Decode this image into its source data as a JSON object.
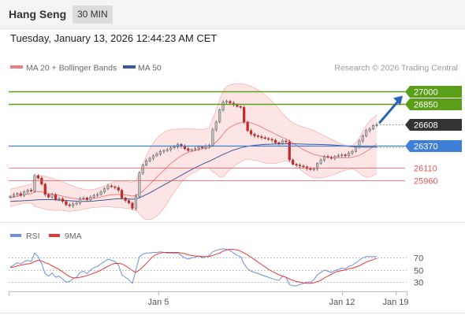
{
  "header": {
    "symbol": "Hang Seng",
    "timeframe": "30 MIN",
    "datetime": "Tuesday, January 13, 2026 12:44:23 AM CET"
  },
  "legend": {
    "ma20_label": "MA 20 + Bollinger Bands",
    "ma50_label": "MA 50",
    "copyright": "Research © 2026 Trading Central"
  },
  "colors": {
    "up_candle": "#bfbfbf",
    "down_candle": "#c62828",
    "ma20": "#f08080",
    "ma50": "#3a5a98",
    "bollinger_fill": "#fde2e2",
    "resistance": "#5a9e1a",
    "pivot": "#3f7fd6",
    "support": "#e35b5b",
    "last_price": "#333333",
    "arrow": "#2a62b8",
    "rsi": "#6f8fd8",
    "rsi_ma": "#e53935"
  },
  "chart_data": [
    {
      "type": "candlestick",
      "title": "",
      "x_ticks": [
        "Jan 5",
        "Jan 12",
        "Jan 19"
      ],
      "ylim": [
        25480,
        27160
      ],
      "levels": [
        {
          "value": 27000,
          "label": "27000",
          "kind": "resistance"
        },
        {
          "value": 26850,
          "label": "26850",
          "kind": "resistance"
        },
        {
          "value": 26608,
          "label": "26608",
          "kind": "last"
        },
        {
          "value": 26370,
          "label": "26370",
          "kind": "pivot"
        },
        {
          "value": 26110,
          "label": "26110",
          "kind": "support"
        },
        {
          "value": 25960,
          "label": "25960",
          "kind": "support"
        }
      ],
      "close": [
        25780,
        25800,
        25810,
        25790,
        25830,
        25850,
        25840,
        26020,
        25990,
        25920,
        25800,
        25770,
        25800,
        25740,
        25750,
        25720,
        25680,
        25670,
        25690,
        25700,
        25750,
        25760,
        25740,
        25770,
        25790,
        25800,
        25830,
        25870,
        25900,
        25890,
        25880,
        25850,
        25760,
        25730,
        25700,
        25640,
        25780,
        26050,
        26140,
        26190,
        26220,
        26250,
        26270,
        26300,
        26310,
        26320,
        26340,
        26350,
        26380,
        26360,
        26330,
        26310,
        26320,
        26330,
        26350,
        26340,
        26360,
        26370,
        26550,
        26640,
        26780,
        26870,
        26880,
        26860,
        26840,
        26820,
        26810,
        26640,
        26540,
        26500,
        26480,
        26470,
        26460,
        26450,
        26440,
        26430,
        26400,
        26390,
        26420,
        26410,
        26200,
        26150,
        26140,
        26130,
        26120,
        26100,
        26090,
        26100,
        26160,
        26200,
        26240,
        26230,
        26220,
        26240,
        26250,
        26260,
        26250,
        26280,
        26300,
        26350,
        26420,
        26480,
        26540,
        26560,
        26600,
        26608
      ],
      "ma20": [
        25760,
        25770,
        25780,
        25790,
        25800,
        25805,
        25810,
        25830,
        25835,
        25830,
        25820,
        25810,
        25805,
        25795,
        25790,
        25780,
        25770,
        25760,
        25755,
        25750,
        25745,
        25745,
        25745,
        25750,
        25755,
        25760,
        25770,
        25780,
        25790,
        25795,
        25800,
        25800,
        25800,
        25795,
        25790,
        25780,
        25790,
        25810,
        25840,
        25880,
        25920,
        25960,
        26000,
        26040,
        26080,
        26120,
        26160,
        26190,
        26220,
        26250,
        26270,
        26290,
        26300,
        26310,
        26320,
        26330,
        26335,
        26340,
        26370,
        26410,
        26450,
        26500,
        26550,
        26580,
        26600,
        26620,
        26630,
        26640,
        26640,
        26630,
        26615,
        26600,
        26580,
        26560,
        26540,
        26520,
        26500,
        26480,
        26460,
        26445,
        26420,
        26395,
        26370,
        26345,
        26320,
        26300,
        26280,
        26265,
        26255,
        26245,
        26240,
        26235,
        26230,
        26228,
        26226,
        26226,
        26226,
        26228,
        26232,
        26240,
        26255,
        26275,
        26300,
        26325,
        26355,
        26385
      ],
      "bb_upper": [
        25860,
        25870,
        25880,
        25890,
        25900,
        25910,
        25920,
        26000,
        26020,
        26020,
        26010,
        26000,
        25990,
        25975,
        25960,
        25945,
        25930,
        25915,
        25900,
        25885,
        25870,
        25860,
        25855,
        25855,
        25860,
        25870,
        25885,
        25900,
        25920,
        25935,
        25950,
        25955,
        25955,
        25950,
        25945,
        25940,
        25960,
        26050,
        26150,
        26250,
        26330,
        26400,
        26450,
        26490,
        26520,
        26540,
        26550,
        26555,
        26558,
        26560,
        26560,
        26560,
        26560,
        26558,
        26555,
        26555,
        26560,
        26570,
        26680,
        26780,
        26900,
        27000,
        27050,
        27070,
        27080,
        27085,
        27085,
        27080,
        27070,
        27055,
        27035,
        27010,
        26985,
        26955,
        26920,
        26880,
        26840,
        26790,
        26740,
        26700,
        26660,
        26630,
        26610,
        26595,
        26580,
        26570,
        26555,
        26540,
        26520,
        26500,
        26480,
        26460,
        26440,
        26420,
        26400,
        26385,
        26370,
        26365,
        26370,
        26400,
        26460,
        26530,
        26600,
        26650,
        26690,
        26720
      ],
      "bb_lower": [
        25660,
        25670,
        25680,
        25690,
        25700,
        25700,
        25700,
        25660,
        25650,
        25640,
        25630,
        25620,
        25620,
        25615,
        25620,
        25615,
        25610,
        25605,
        25610,
        25615,
        25620,
        25630,
        25635,
        25645,
        25650,
        25650,
        25655,
        25660,
        25660,
        25655,
        25650,
        25645,
        25645,
        25640,
        25635,
        25620,
        25620,
        25570,
        25530,
        25510,
        25510,
        25520,
        25550,
        25590,
        25640,
        25700,
        25770,
        25825,
        25882,
        25940,
        25980,
        26020,
        26040,
        26062,
        26085,
        26105,
        26110,
        26110,
        26060,
        26040,
        26000,
        26000,
        26050,
        26090,
        26120,
        26155,
        26175,
        26200,
        26210,
        26205,
        26195,
        26190,
        26175,
        26165,
        26160,
        26160,
        26160,
        26170,
        26180,
        26190,
        26180,
        26160,
        26130,
        26095,
        26060,
        26030,
        26005,
        25990,
        25990,
        25990,
        26000,
        26010,
        26020,
        26036,
        26052,
        26067,
        26082,
        26091,
        26094,
        26080,
        26050,
        26020,
        26000,
        26000,
        26020,
        26050
      ],
      "ma50": [
        25720,
        25722,
        25724,
        25726,
        25728,
        25730,
        25732,
        25736,
        25739,
        25740,
        25740,
        25740,
        25740,
        25738,
        25736,
        25733,
        25730,
        25727,
        25725,
        25722,
        25720,
        25720,
        25720,
        25722,
        25725,
        25728,
        25732,
        25736,
        25740,
        25744,
        25748,
        25750,
        25750,
        25750,
        25748,
        25745,
        25748,
        25762,
        25780,
        25800,
        25820,
        25842,
        25865,
        25888,
        25910,
        25932,
        25955,
        25978,
        26000,
        26022,
        26045,
        26068,
        26090,
        26110,
        26130,
        26150,
        26168,
        26185,
        26205,
        26225,
        26245,
        26265,
        26282,
        26300,
        26315,
        26328,
        26340,
        26350,
        26358,
        26365,
        26370,
        26374,
        26378,
        26380,
        26382,
        26384,
        26385,
        26386,
        26387,
        26388,
        26388,
        26387,
        26386,
        26385,
        26384,
        26383,
        26382,
        26381,
        26380,
        26379,
        26378,
        26377,
        26375,
        26372,
        26369,
        26366,
        26362,
        26358,
        26355,
        26352,
        26350,
        26349,
        26348,
        26348,
        26348,
        26349
      ]
    },
    {
      "type": "line",
      "title": "",
      "series": [
        {
          "name": "RSI",
          "values": [
            55,
            58,
            62,
            60,
            64,
            66,
            64,
            78,
            72,
            60,
            44,
            40,
            45,
            38,
            40,
            35,
            30,
            31,
            36,
            38,
            46,
            48,
            44,
            50,
            54,
            56,
            60,
            64,
            68,
            66,
            64,
            58,
            42,
            38,
            34,
            28,
            50,
            72,
            76,
            78,
            78,
            79,
            79,
            80,
            79,
            78,
            78,
            77,
            78,
            74,
            70,
            68,
            70,
            71,
            73,
            70,
            72,
            73,
            80,
            82,
            84,
            85,
            84,
            82,
            78,
            74,
            72,
            60,
            52,
            48,
            46,
            44,
            42,
            40,
            38,
            36,
            34,
            33,
            40,
            38,
            26,
            24,
            24,
            26,
            28,
            30,
            30,
            34,
            42,
            46,
            50,
            48,
            46,
            49,
            51,
            53,
            52,
            56,
            58,
            62,
            66,
            70,
            72,
            72,
            72,
            72
          ]
        },
        {
          "name": "9MA",
          "values": [
            54,
            55,
            57,
            58,
            59,
            60,
            61,
            64,
            66,
            65,
            62,
            60,
            57,
            54,
            51,
            47,
            43,
            39,
            37,
            37,
            38,
            39,
            41,
            43,
            45,
            47,
            50,
            53,
            56,
            59,
            61,
            61,
            60,
            57,
            53,
            49,
            46,
            50,
            55,
            61,
            67,
            73,
            76,
            78,
            79,
            79,
            79,
            79,
            79,
            78,
            77,
            75,
            74,
            73,
            73,
            72,
            72,
            72,
            74,
            76,
            78,
            81,
            83,
            84,
            84,
            83,
            81,
            78,
            75,
            71,
            67,
            63,
            59,
            55,
            51,
            48,
            45,
            42,
            40,
            38,
            35,
            33,
            31,
            30,
            29,
            28,
            28,
            29,
            31,
            33,
            37,
            40,
            43,
            46,
            48,
            49,
            50,
            52,
            53,
            55,
            57,
            60,
            63,
            65,
            67,
            69
          ]
        }
      ],
      "y_ticks": [
        30,
        50,
        70
      ],
      "ylim": [
        20,
        90
      ]
    }
  ]
}
